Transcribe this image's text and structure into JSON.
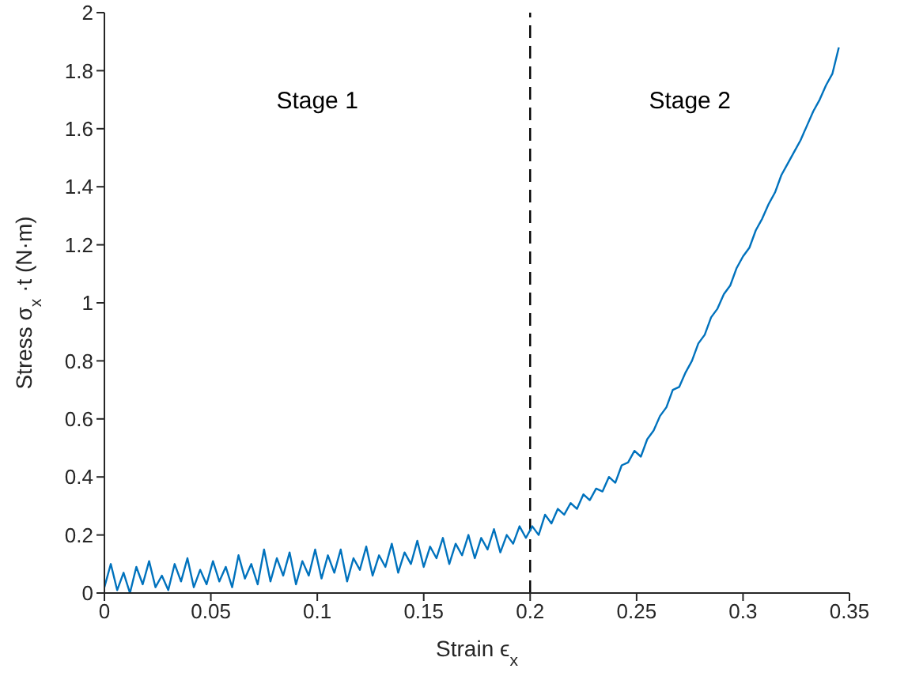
{
  "chart_data": {
    "type": "line",
    "xlabel": "Strain ϵ$_{x}$",
    "ylabel": "Stress σ$_{x}$·t (N·m)",
    "x": [
      0,
      0.003,
      0.006,
      0.009,
      0.012,
      0.015,
      0.018,
      0.021,
      0.024,
      0.027,
      0.03,
      0.033,
      0.036,
      0.039,
      0.042,
      0.045,
      0.048,
      0.051,
      0.054,
      0.057,
      0.06,
      0.063,
      0.066,
      0.069,
      0.072,
      0.075,
      0.078,
      0.081,
      0.084,
      0.087,
      0.09,
      0.093,
      0.096,
      0.099,
      0.102,
      0.105,
      0.108,
      0.111,
      0.114,
      0.117,
      0.12,
      0.123,
      0.126,
      0.129,
      0.132,
      0.135,
      0.138,
      0.141,
      0.144,
      0.147,
      0.15,
      0.153,
      0.156,
      0.159,
      0.162,
      0.165,
      0.168,
      0.171,
      0.174,
      0.177,
      0.18,
      0.183,
      0.186,
      0.189,
      0.192,
      0.195,
      0.198,
      0.201,
      0.204,
      0.207,
      0.21,
      0.213,
      0.216,
      0.219,
      0.222,
      0.225,
      0.228,
      0.231,
      0.234,
      0.237,
      0.24,
      0.243,
      0.246,
      0.249,
      0.252,
      0.255,
      0.258,
      0.261,
      0.264,
      0.267,
      0.27,
      0.273,
      0.276,
      0.279,
      0.282,
      0.285,
      0.288,
      0.291,
      0.294,
      0.297,
      0.3,
      0.303,
      0.306,
      0.309,
      0.312,
      0.315,
      0.318,
      0.321,
      0.324,
      0.327,
      0.33,
      0.333,
      0.336,
      0.339,
      0.342,
      0.345
    ],
    "series": [
      {
        "color": "#0072bd",
        "values": [
          0.02,
          0.1,
          0.01,
          0.07,
          0.0,
          0.09,
          0.03,
          0.11,
          0.02,
          0.06,
          0.01,
          0.1,
          0.04,
          0.12,
          0.02,
          0.08,
          0.03,
          0.11,
          0.04,
          0.09,
          0.02,
          0.13,
          0.05,
          0.1,
          0.03,
          0.15,
          0.04,
          0.12,
          0.06,
          0.14,
          0.03,
          0.11,
          0.06,
          0.15,
          0.05,
          0.13,
          0.07,
          0.15,
          0.04,
          0.12,
          0.08,
          0.16,
          0.06,
          0.13,
          0.09,
          0.17,
          0.07,
          0.14,
          0.1,
          0.18,
          0.09,
          0.16,
          0.12,
          0.19,
          0.1,
          0.17,
          0.13,
          0.2,
          0.12,
          0.19,
          0.15,
          0.22,
          0.14,
          0.2,
          0.17,
          0.23,
          0.19,
          0.23,
          0.2,
          0.27,
          0.24,
          0.29,
          0.27,
          0.31,
          0.29,
          0.34,
          0.32,
          0.36,
          0.35,
          0.4,
          0.38,
          0.44,
          0.45,
          0.49,
          0.47,
          0.53,
          0.56,
          0.61,
          0.64,
          0.7,
          0.71,
          0.76,
          0.8,
          0.86,
          0.89,
          0.95,
          0.98,
          1.03,
          1.06,
          1.12,
          1.16,
          1.19,
          1.25,
          1.29,
          1.34,
          1.38,
          1.44,
          1.48,
          1.52,
          1.56,
          1.61,
          1.66,
          1.7,
          1.75,
          1.79,
          1.88
        ]
      }
    ],
    "xlim": [
      0,
      0.35
    ],
    "xticks": [
      0,
      0.05,
      0.1,
      0.15,
      0.2,
      0.25,
      0.3,
      0.35
    ],
    "ylim": [
      0,
      2
    ],
    "yticks": [
      0,
      0.2,
      0.4,
      0.6,
      0.8,
      1,
      1.2,
      1.4,
      1.6,
      1.8,
      2
    ],
    "ref_lines": [
      {
        "axis": "x",
        "value": 0.2,
        "color": "#000000",
        "line_style": "dashed"
      }
    ],
    "annotations": [
      "Stage 1",
      "Stage 2"
    ],
    "line_style": "solid"
  }
}
